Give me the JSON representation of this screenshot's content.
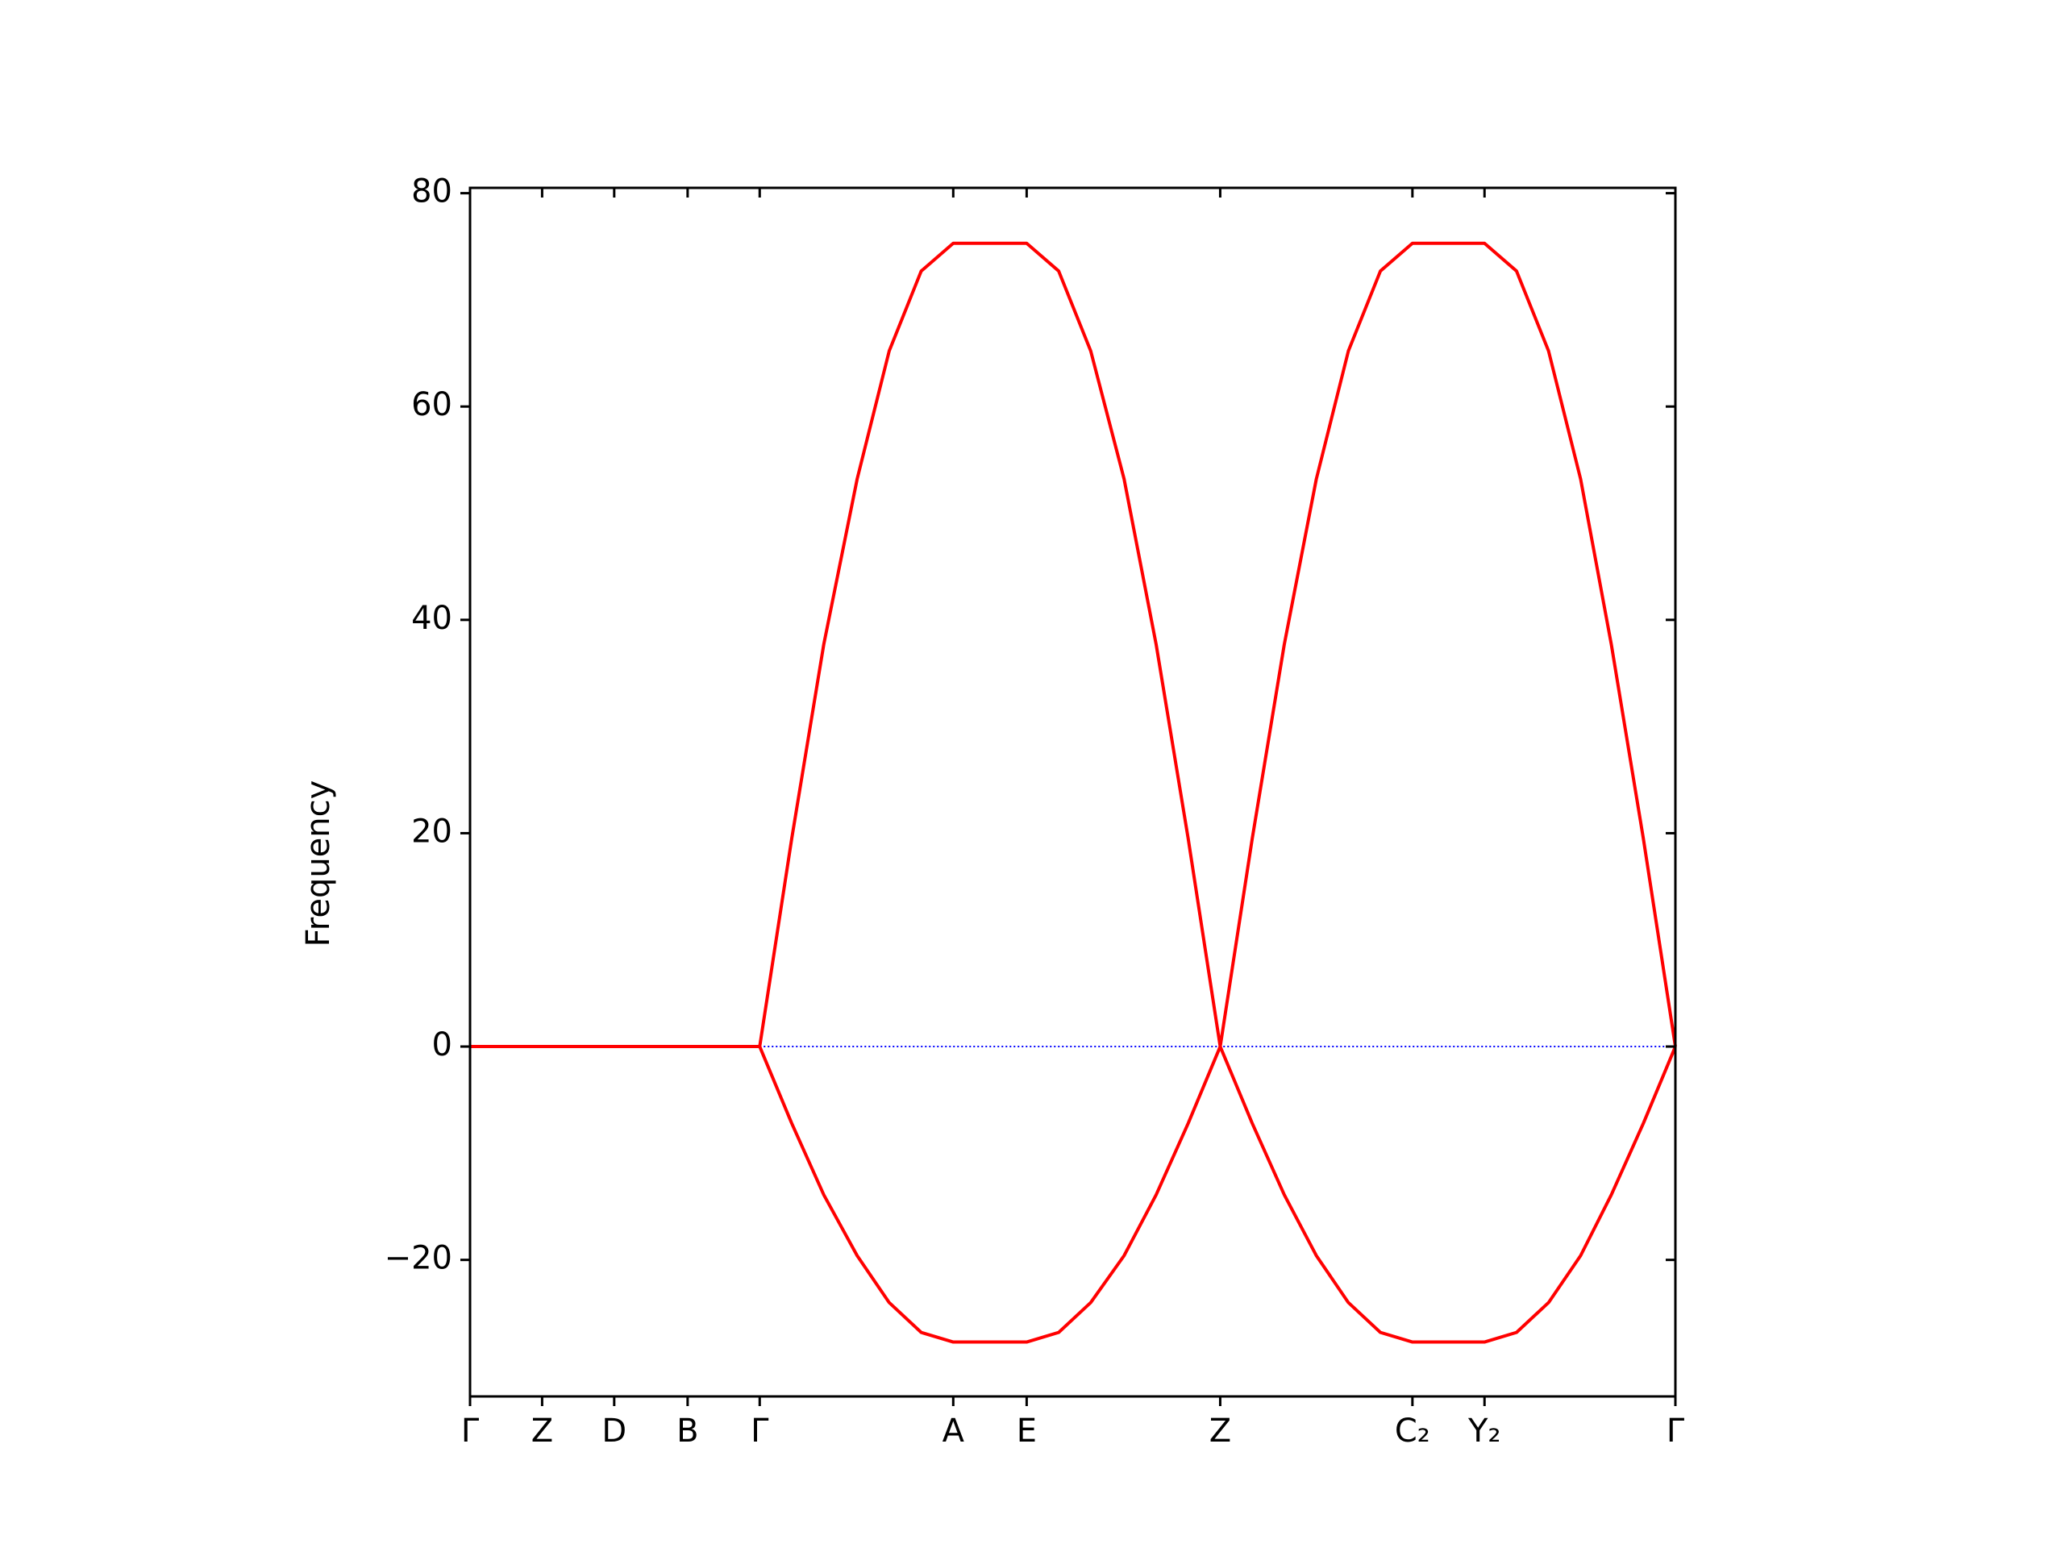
{
  "chart_data": {
    "type": "line",
    "ylabel": "Frequency",
    "x": [
      0,
      0.54,
      1.08,
      1.63,
      2.17,
      2.41,
      2.65,
      2.9,
      3.14,
      3.38,
      3.62,
      4.17,
      4.41,
      4.65,
      4.9,
      5.14,
      5.38,
      5.62,
      5.86,
      6.1,
      6.34,
      6.58,
      6.82,
      7.06,
      7.6,
      7.84,
      8.08,
      8.32,
      8.55,
      8.79,
      9.03
    ],
    "series": [
      {
        "color": "#ff0000",
        "values": [
          0,
          0,
          0,
          0,
          0,
          19.5,
          37.7,
          53.2,
          65.2,
          72.7,
          75.3,
          75.3,
          72.7,
          65.2,
          53.2,
          37.7,
          19.5,
          0,
          19.5,
          37.7,
          53.2,
          65.2,
          72.7,
          75.3,
          75.3,
          72.7,
          65.2,
          53.2,
          37.7,
          19.5,
          0
        ]
      },
      {
        "color": "#ff0000",
        "values": [
          0,
          0,
          0,
          0,
          0,
          -7.2,
          -13.9,
          -19.6,
          -24.0,
          -26.8,
          -27.7,
          -27.7,
          -26.8,
          -24.0,
          -19.6,
          -13.9,
          -7.2,
          0,
          -7.2,
          -13.9,
          -19.6,
          -24.0,
          -26.8,
          -27.7,
          -27.7,
          -26.8,
          -24.0,
          -19.6,
          -13.9,
          -7.2,
          0
        ]
      }
    ],
    "zero_line": {
      "value": 0,
      "from": 2.17,
      "to": 9.03,
      "color": "#0000ff"
    },
    "xlim": [
      0,
      9.03
    ],
    "xticks": [
      {
        "value": 0,
        "label": "Γ"
      },
      {
        "value": 0.54,
        "label": "Z"
      },
      {
        "value": 1.08,
        "label": "D"
      },
      {
        "value": 1.63,
        "label": "B"
      },
      {
        "value": 2.17,
        "label": "Γ"
      },
      {
        "value": 3.62,
        "label": "A"
      },
      {
        "value": 4.17,
        "label": "E"
      },
      {
        "value": 5.62,
        "label": "Z"
      },
      {
        "value": 7.06,
        "label": "C₂"
      },
      {
        "value": 7.6,
        "label": "Y₂"
      },
      {
        "value": 9.03,
        "label": "Γ"
      }
    ],
    "ylim": [
      -32.8,
      80.5
    ],
    "yticks": [
      {
        "value": -20,
        "label": "−20"
      },
      0,
      20,
      40,
      60,
      80
    ]
  }
}
